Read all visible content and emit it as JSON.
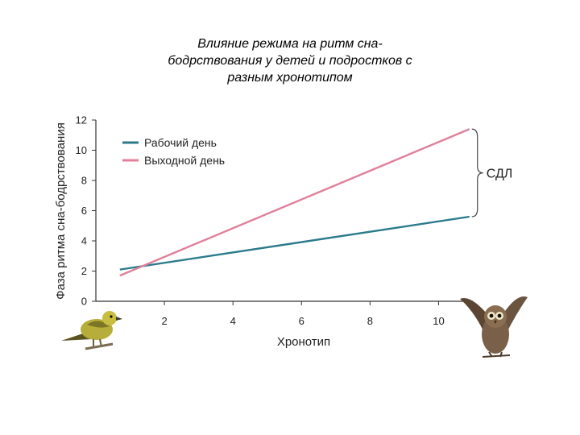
{
  "title_lines": [
    "Влияние режима на ритм сна-",
    "бодрствования у детей и подростков с",
    "разным хронотипом"
  ],
  "chart_data": {
    "type": "line",
    "xlabel": "Хронотип",
    "ylabel": "Фаза ритма сна-бодрствования",
    "xlim": [
      0,
      11
    ],
    "ylim": [
      0,
      12
    ],
    "xticks": [
      2,
      4,
      6,
      8,
      10
    ],
    "yticks": [
      0,
      2,
      4,
      6,
      8,
      10,
      12
    ],
    "xtick_labels": [
      "2",
      "4",
      "6",
      "8",
      "10"
    ],
    "ytick_labels": [
      "0",
      "2",
      "4",
      "6",
      "8",
      "10",
      "12"
    ],
    "legend_position": "top-left",
    "grid": false,
    "series": [
      {
        "name": "Рабочий день",
        "color": "#2a7a8c",
        "x": [
          0.7,
          10.9
        ],
        "y": [
          2.1,
          5.6
        ]
      },
      {
        "name": "Выходной день",
        "color": "#e0809a",
        "x": [
          0.7,
          10.9
        ],
        "y": [
          1.7,
          11.4
        ]
      }
    ],
    "annotation": {
      "text": "СДЛ",
      "x": 10.9,
      "y_range": [
        5.6,
        11.4
      ]
    },
    "decorations": [
      "songbird-icon",
      "owl-icon"
    ]
  }
}
